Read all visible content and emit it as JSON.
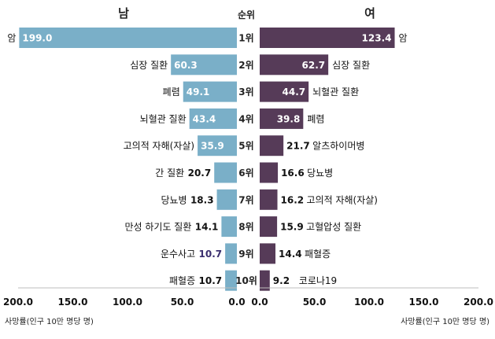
{
  "chart_data": {
    "type": "bar",
    "orientation": "horizontal",
    "layout": "butterfly",
    "rank_header": "순위",
    "ranks": [
      "1위",
      "2위",
      "3위",
      "4위",
      "5위",
      "6위",
      "7위",
      "8위",
      "9위",
      "10위"
    ],
    "xlim": [
      0,
      200
    ],
    "left_ticks": [
      "200.0",
      "150.0",
      "100.0",
      "50.0",
      "0.0"
    ],
    "right_ticks": [
      "0.0",
      "50.0",
      "100.0",
      "150.0",
      "200.0"
    ],
    "left_footnote": "사망률(인구 10만 명당 명)",
    "right_footnote": "사망률(인구 10만 명당 명)",
    "grid": false,
    "series": [
      {
        "name": "남",
        "color": "#7aafc8",
        "categories": [
          "암",
          "심장 질환",
          "폐렴",
          "뇌혈관 질환",
          "고의적 자해(자살)",
          "간 질환",
          "당뇨병",
          "만성 하기도 질환",
          "운수사고",
          "패혈증"
        ],
        "values": [
          199.0,
          60.3,
          49.1,
          43.4,
          35.9,
          20.7,
          18.3,
          14.1,
          10.7,
          10.7
        ],
        "labels": [
          "199.0",
          "60.3",
          "49.1",
          "43.4",
          "35.9",
          "20.7",
          "18.3",
          "14.1",
          "10.7",
          "10.7"
        ]
      },
      {
        "name": "여",
        "color": "#563b58",
        "categories": [
          "암",
          "심장 질환",
          "뇌혈관 질환",
          "폐렴",
          "알츠하이머병",
          "당뇨병",
          "고의적 자해(자살)",
          "고혈압성 질환",
          "패혈증",
          "코로나19"
        ],
        "values": [
          123.4,
          62.7,
          44.7,
          39.8,
          21.7,
          16.6,
          16.2,
          15.9,
          14.4,
          9.2
        ],
        "labels": [
          "123.4",
          "62.7",
          "44.7",
          "39.8",
          "21.7",
          "16.6",
          "16.2",
          "15.9",
          "14.4",
          "9.2"
        ]
      }
    ]
  }
}
